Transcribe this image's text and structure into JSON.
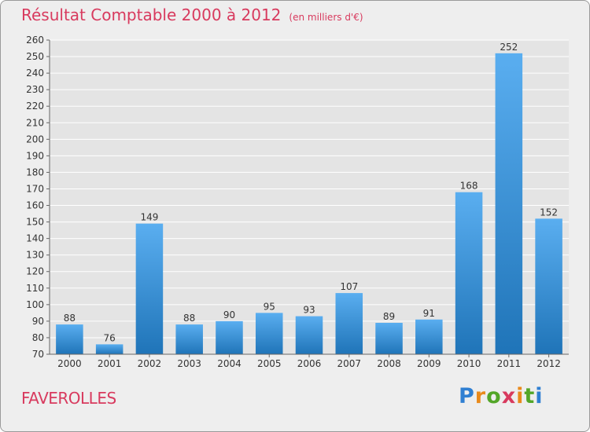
{
  "title": "Résultat Comptable 2000 à 2012",
  "subtitle": "(en milliers d'€)",
  "location": "FAVEROLLES",
  "brand": "Proxiti",
  "colors": {
    "title": "#d83a5e",
    "bar_light": "#5aaef0",
    "bar_dark": "#1f74b8",
    "plot_bg": "#e4e4e4",
    "grid": "#ffffff"
  },
  "chart_data": {
    "type": "bar",
    "categories": [
      "2000",
      "2001",
      "2002",
      "2003",
      "2004",
      "2005",
      "2006",
      "2007",
      "2008",
      "2009",
      "2010",
      "2011",
      "2012"
    ],
    "values": [
      88,
      76,
      149,
      88,
      90,
      95,
      93,
      107,
      89,
      91,
      168,
      252,
      152
    ],
    "title": "Résultat Comptable 2000 à 2012",
    "ylim": [
      70,
      260
    ],
    "ytick_step": 10,
    "grid": true,
    "data_labels": true
  }
}
